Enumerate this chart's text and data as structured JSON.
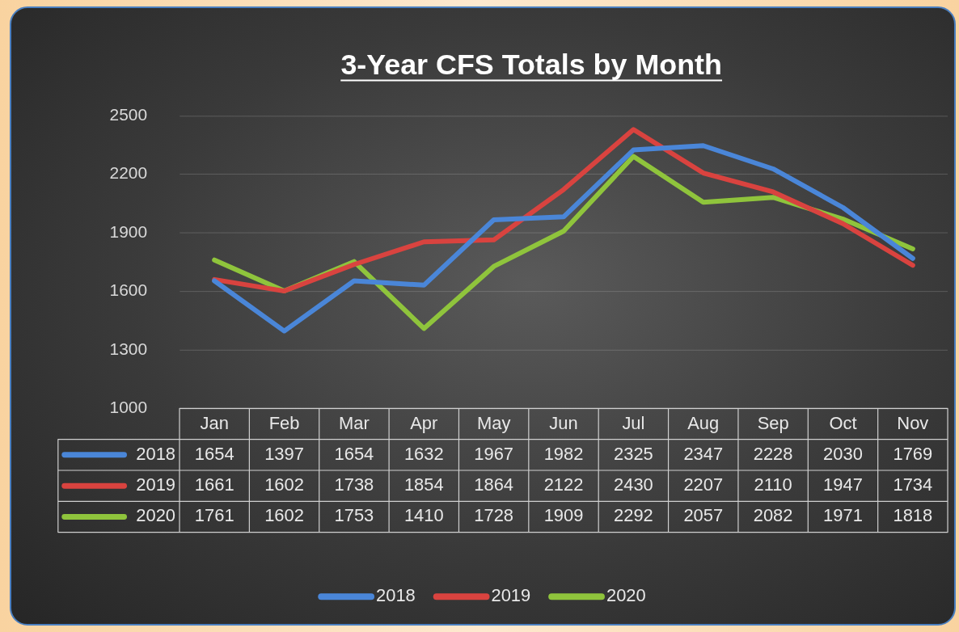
{
  "chart_data": {
    "type": "line",
    "title": "3-Year CFS Totals by Month",
    "categories": [
      "Jan",
      "Feb",
      "Mar",
      "Apr",
      "May",
      "Jun",
      "Jul",
      "Aug",
      "Sep",
      "Oct",
      "Nov"
    ],
    "series": [
      {
        "name": "2018",
        "color": "#4a86d8",
        "values": [
          1654,
          1397,
          1654,
          1632,
          1967,
          1982,
          2325,
          2347,
          2228,
          2030,
          1769
        ]
      },
      {
        "name": "2019",
        "color": "#d9433f",
        "values": [
          1661,
          1602,
          1738,
          1854,
          1864,
          2122,
          2430,
          2207,
          2110,
          1947,
          1734
        ]
      },
      {
        "name": "2020",
        "color": "#8fc43c",
        "values": [
          1761,
          1602,
          1753,
          1410,
          1728,
          1909,
          2292,
          2057,
          2082,
          1971,
          1818
        ]
      }
    ],
    "ylim": [
      1000,
      2500
    ],
    "yticks": [
      1000,
      1300,
      1600,
      1900,
      2200,
      2500
    ],
    "grid": "y",
    "legend": "bottom",
    "marker": "none",
    "line_style": "solid",
    "data_labels": true
  }
}
